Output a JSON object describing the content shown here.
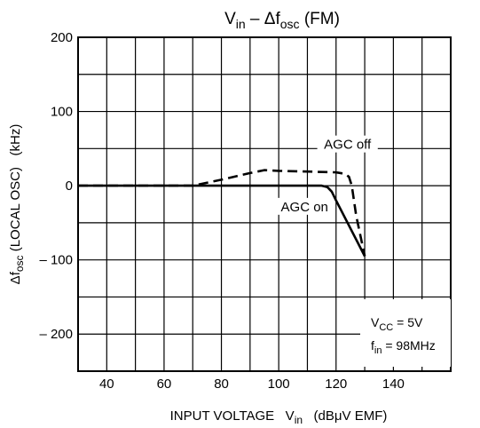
{
  "chart_data": {
    "type": "line",
    "title": {
      "main": "V",
      "main_sub": "in",
      "mid": " – Δf",
      "mid_sub": "osc",
      "tail": " (FM)"
    },
    "xlabel": {
      "prefix": "INPUT VOLTAGE   V",
      "sub": "in",
      "suffix": "   (dBμV EMF)"
    },
    "ylabel": {
      "prefix": "Δf",
      "sub": "osc",
      "suffix": " (LOCAL OSC)   (kHz)"
    },
    "xlim": [
      30,
      160
    ],
    "ylim": [
      -250,
      200
    ],
    "x_grid": [
      30,
      40,
      50,
      60,
      70,
      80,
      90,
      100,
      110,
      120,
      130,
      140,
      150,
      160
    ],
    "y_grid": [
      -250,
      -200,
      -150,
      -100,
      -50,
      0,
      50,
      100,
      150,
      200
    ],
    "x_ticks": [
      {
        "value": 40,
        "label": "40"
      },
      {
        "value": 60,
        "label": "60"
      },
      {
        "value": 80,
        "label": "80"
      },
      {
        "value": 100,
        "label": "100"
      },
      {
        "value": 120,
        "label": "120"
      },
      {
        "value": 140,
        "label": "140"
      }
    ],
    "y_ticks": [
      {
        "value": 200,
        "label": "200"
      },
      {
        "value": 100,
        "label": "100"
      },
      {
        "value": 0,
        "label": "0"
      },
      {
        "value": -100,
        "label": "– 100"
      },
      {
        "value": -200,
        "label": "– 200"
      }
    ],
    "grid": true,
    "series": [
      {
        "name": "AGC off",
        "style": "dashed",
        "color": "#000000",
        "x": [
          30,
          70,
          80,
          90,
          95,
          100,
          110,
          120,
          123,
          124.5,
          125.5,
          127,
          130
        ],
        "y": [
          0,
          0,
          8,
          17,
          21,
          20,
          19,
          18,
          16,
          12,
          0,
          -40,
          -95
        ]
      },
      {
        "name": "AGC on",
        "style": "solid",
        "color": "#000000",
        "x": [
          30,
          70,
          100,
          110,
          115,
          117,
          118.5,
          120,
          130
        ],
        "y": [
          0,
          0,
          0,
          0,
          0,
          -2,
          -8,
          -20,
          -95
        ]
      }
    ],
    "annotations": [
      {
        "text": "AGC off",
        "x": 124,
        "y": 52
      },
      {
        "text": "AGC on",
        "x": 109,
        "y": -32
      }
    ],
    "conditions": {
      "vcc_prefix": "V",
      "vcc_sub": "CC",
      "vcc_value": " = 5V",
      "fin_prefix": "f",
      "fin_sub": "in",
      "fin_value": " = 98MHz"
    }
  }
}
